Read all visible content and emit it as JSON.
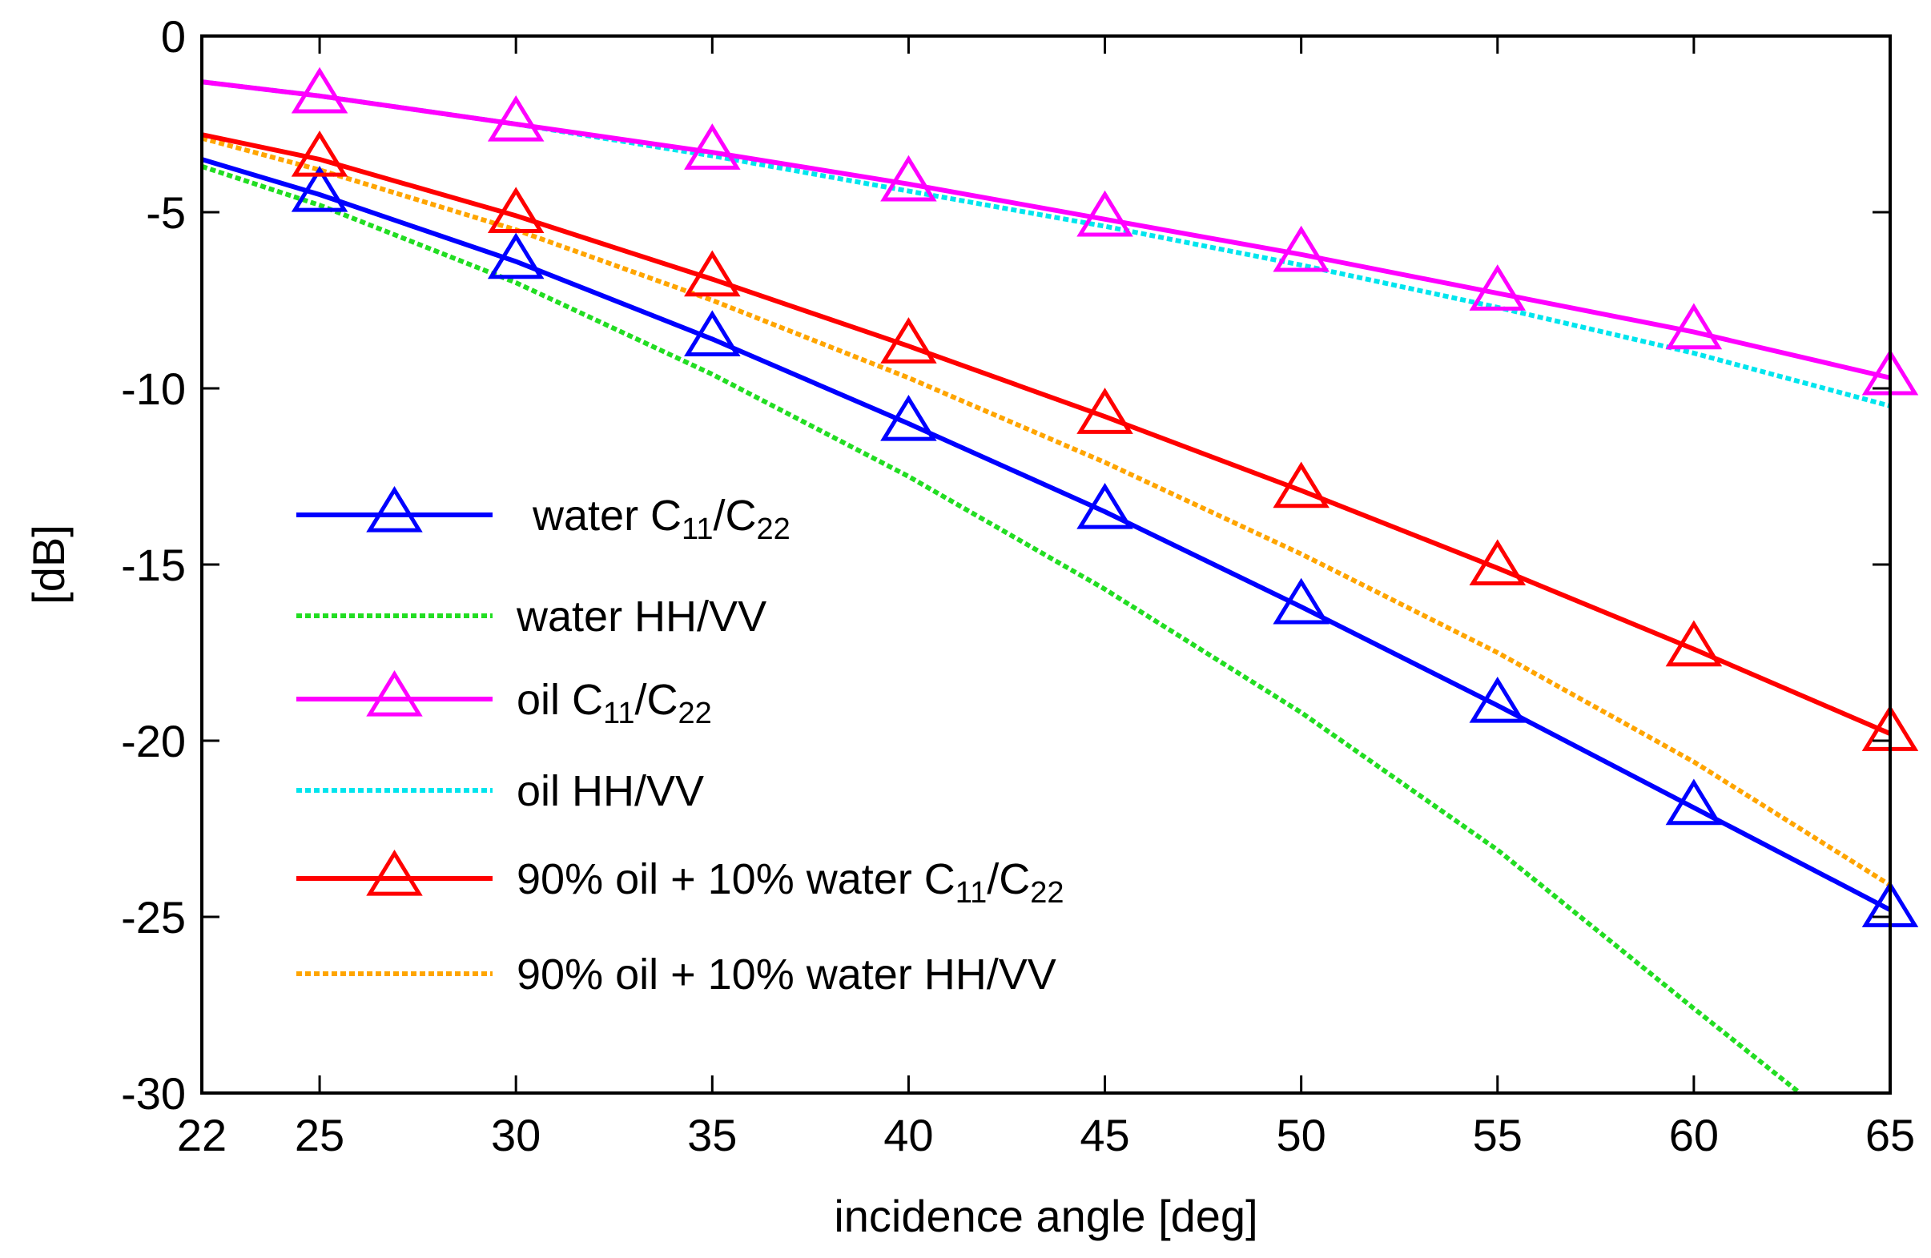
{
  "chart_data": {
    "type": "line",
    "title": "",
    "xlabel": "incidence angle [deg]",
    "ylabel": "[dB]",
    "xlim": [
      22,
      65
    ],
    "ylim": [
      -30,
      0
    ],
    "xticks": [
      22,
      25,
      30,
      35,
      40,
      45,
      50,
      55,
      60,
      65
    ],
    "yticks": [
      0,
      -5,
      -10,
      -15,
      -20,
      -25,
      -30
    ],
    "grid": false,
    "legend_position": "lower-left",
    "series": [
      {
        "name": "water C11/C22",
        "label_main": "water C",
        "label_sub1": "11",
        "label_mid": "/C",
        "label_sub2": "22",
        "color": "#0000ff",
        "line_style": "solid",
        "marker": "triangle",
        "x": [
          22,
          25,
          30,
          35,
          40,
          45,
          50,
          55,
          60,
          65
        ],
        "y": [
          -3.5,
          -4.5,
          -6.4,
          -8.6,
          -11.0,
          -13.5,
          -16.2,
          -19.0,
          -21.9,
          -24.8
        ],
        "marker_x": [
          25,
          30,
          35,
          40,
          45,
          50,
          55,
          60,
          65
        ]
      },
      {
        "name": "water HH/VV",
        "label_main": "water HH/VV",
        "color": "#22dd22",
        "line_style": "dotted",
        "marker": "none",
        "x": [
          22,
          25,
          30,
          35,
          40,
          45,
          50,
          55,
          60,
          62.7
        ],
        "y": [
          -3.7,
          -4.8,
          -7.0,
          -9.6,
          -12.5,
          -15.7,
          -19.2,
          -23.1,
          -27.6,
          -30.0
        ]
      },
      {
        "name": "oil C11/C22",
        "label_main": "oil C",
        "label_sub1": "11",
        "label_mid": "/C",
        "label_sub2": "22",
        "color": "#ff00ff",
        "line_style": "solid",
        "marker": "triangle",
        "x": [
          22,
          25,
          30,
          35,
          40,
          45,
          50,
          55,
          60,
          65
        ],
        "y": [
          -1.3,
          -1.7,
          -2.5,
          -3.3,
          -4.2,
          -5.2,
          -6.2,
          -7.3,
          -8.4,
          -9.7
        ],
        "marker_x": [
          25,
          30,
          35,
          40,
          45,
          50,
          55,
          60,
          65
        ]
      },
      {
        "name": "oil HH/VV",
        "label_main": "oil HH/VV",
        "color": "#00e5ee",
        "line_style": "dotted",
        "marker": "none",
        "x": [
          22,
          25,
          30,
          35,
          40,
          45,
          50,
          55,
          60,
          65
        ],
        "y": [
          -1.3,
          -1.7,
          -2.5,
          -3.4,
          -4.4,
          -5.4,
          -6.5,
          -7.7,
          -9.0,
          -10.5
        ]
      },
      {
        "name": "90% oil + 10% water C11/C22",
        "label_main": "90% oil + 10% water C",
        "label_sub1": "11",
        "label_mid": "/C",
        "label_sub2": "22",
        "color": "#ff0000",
        "line_style": "solid",
        "marker": "triangle",
        "x": [
          22,
          25,
          30,
          35,
          40,
          45,
          50,
          55,
          60,
          65
        ],
        "y": [
          -2.8,
          -3.5,
          -5.1,
          -6.9,
          -8.8,
          -10.8,
          -12.9,
          -15.1,
          -17.4,
          -19.8
        ],
        "marker_x": [
          25,
          30,
          35,
          40,
          45,
          50,
          55,
          60,
          65
        ]
      },
      {
        "name": "90% oil + 10% water HH/VV",
        "label_main": "90% oil + 10% water HH/VV",
        "color": "#ffa500",
        "line_style": "dotted",
        "marker": "none",
        "x": [
          22,
          25,
          30,
          35,
          40,
          45,
          50,
          55,
          60,
          65
        ],
        "y": [
          -2.9,
          -3.8,
          -5.5,
          -7.5,
          -9.7,
          -12.1,
          -14.7,
          -17.5,
          -20.6,
          -24.1
        ]
      }
    ]
  }
}
